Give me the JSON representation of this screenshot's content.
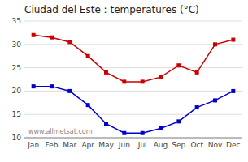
{
  "chart_data": {
    "type": "line",
    "title": "Ciudad del Este : temperatures (°C)",
    "categories": [
      "Jan",
      "Feb",
      "Mar",
      "Apr",
      "May",
      "Jun",
      "Jul",
      "Aug",
      "Sep",
      "Oct",
      "Nov",
      "Dec"
    ],
    "series": [
      {
        "color": "#cc0000",
        "marker": "square",
        "values": [
          32,
          31.5,
          30.5,
          27.5,
          24,
          22,
          22,
          23,
          25.5,
          24,
          30,
          31
        ]
      },
      {
        "color": "#0000cc",
        "marker": "square",
        "values": [
          21,
          21,
          20,
          17,
          13,
          11,
          11,
          12,
          13.5,
          16.5,
          18,
          20
        ]
      }
    ],
    "ylim": [
      10,
      35
    ],
    "yticks": [
      10,
      15,
      20,
      25,
      30,
      35
    ],
    "grid": true,
    "annotation": "www.allmetsat.com"
  }
}
